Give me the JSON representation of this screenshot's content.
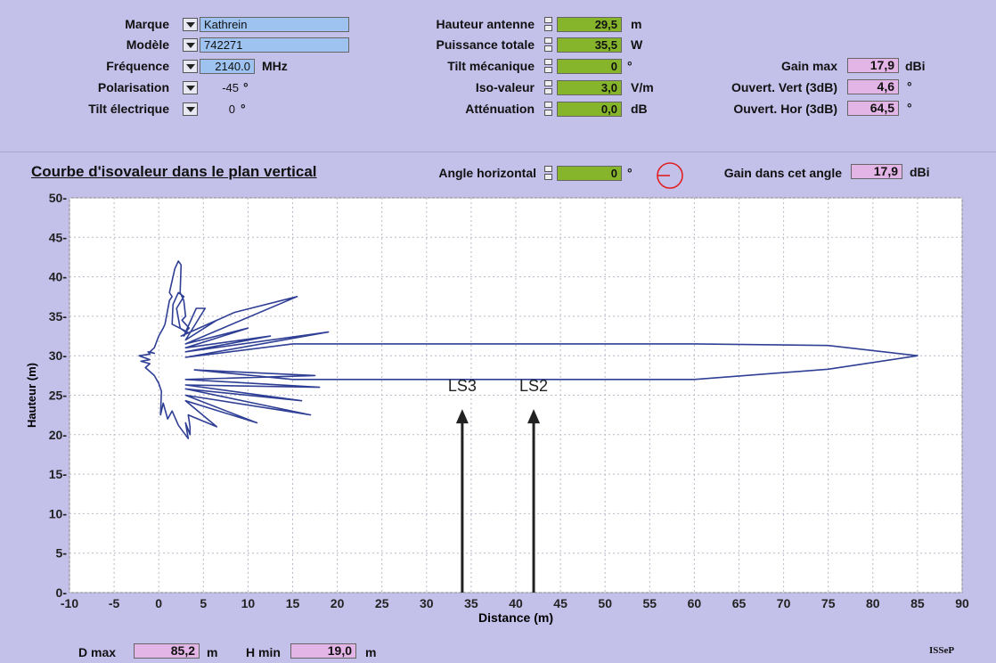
{
  "params_left": {
    "marque_label": "Marque",
    "marque_value": "Kathrein",
    "modele_label": "Modèle",
    "modele_value": "742271",
    "frequence_label": "Fréquence",
    "frequence_value": "2140.0",
    "frequence_unit": "MHz",
    "polarisation_label": "Polarisation",
    "polarisation_value": "-45",
    "polarisation_unit": "°",
    "tilt_elec_label": "Tilt électrique",
    "tilt_elec_value": "0",
    "tilt_elec_unit": "°"
  },
  "params_mid": {
    "hauteur_label": "Hauteur antenne",
    "hauteur_value": "29,5",
    "hauteur_unit": "m",
    "puissance_label": "Puissance totale",
    "puissance_value": "35,5",
    "puissance_unit": "W",
    "tilt_meca_label": "Tilt mécanique",
    "tilt_meca_value": "0",
    "tilt_meca_unit": "°",
    "iso_label": "Iso-valeur",
    "iso_value": "3,0",
    "iso_unit": "V/m",
    "att_label": "Atténuation",
    "att_value": "0,0",
    "att_unit": "dB"
  },
  "params_right": {
    "gain_label": "Gain max",
    "gain_value": "17,9",
    "gain_unit": "dBi",
    "vert_label": "Ouvert. Vert (3dB)",
    "vert_value": "4,6",
    "vert_unit": "°",
    "hor_label": "Ouvert. Hor (3dB)",
    "hor_value": "64,5",
    "hor_unit": "°"
  },
  "section": {
    "title": "Courbe d'isovaleur dans le plan vertical",
    "angle_label": "Angle horizontal",
    "angle_value": "0",
    "angle_unit": "°",
    "gain_angle_label": "Gain dans cet angle",
    "gain_angle_value": "17,9",
    "gain_angle_unit": "dBi"
  },
  "bottom": {
    "dmax_label": "D max",
    "dmax_value": "85,2",
    "dmax_unit": "m",
    "hmin_label": "H min",
    "hmin_value": "19,0",
    "hmin_unit": "m",
    "logo": "ISSeP"
  },
  "colors": {
    "background": "#c3c0ea",
    "curve": "#2f3f95",
    "input_blue": "#9ec3f0",
    "input_green": "#86b52c",
    "output_pink": "#e3b4e6",
    "compass": "#e02020"
  },
  "chart_data": {
    "type": "line",
    "title": "",
    "xlabel": "Distance (m)",
    "ylabel": "Hauteur (m)",
    "xlim": [
      -10,
      90
    ],
    "ylim": [
      0,
      50
    ],
    "xticks": [
      -10,
      -5,
      0,
      5,
      10,
      15,
      20,
      25,
      30,
      35,
      40,
      45,
      50,
      55,
      60,
      65,
      70,
      75,
      80,
      85,
      90
    ],
    "yticks": [
      0,
      5,
      10,
      15,
      20,
      25,
      30,
      35,
      40,
      45,
      50
    ],
    "grid": true,
    "series": [
      {
        "x": [
          -1,
          -0.5,
          0,
          0.5,
          0.7,
          1.2,
          1.5,
          1.2,
          1.8,
          2.2,
          2.5,
          2.4,
          2.8,
          3.0,
          2.6,
          3.4,
          3.0,
          2.4,
          2.0,
          2.8,
          2.2,
          1.6,
          1.5,
          3.2,
          2.8,
          4.2,
          5.2,
          3.0,
          6.5,
          2.5,
          8.5,
          15.5,
          3.0,
          10.0,
          3.0,
          12.5,
          3.0,
          19.0,
          3.0,
          15.0,
          60.0,
          75.0,
          85.0,
          75.0,
          60.0,
          15.0,
          4.0,
          17.5,
          3.0,
          18.0,
          3.0,
          16.0,
          3.0,
          17.0,
          3.0,
          11.0,
          3.0,
          6.5,
          3.3,
          3.5,
          3.5,
          3.0,
          3.3,
          2.2,
          1.5,
          1.0,
          0.5,
          0.2,
          0.3,
          0.0,
          -0.5,
          -1.0,
          -1.5,
          -1.0,
          -2.0,
          -1.0,
          -2.2,
          -1.0,
          -1.2,
          -0.5,
          -1.0
        ],
        "y": [
          30.5,
          31.0,
          32.5,
          33.5,
          34.0,
          37.0,
          37.5,
          38.0,
          41.0,
          42.0,
          41.5,
          38.0,
          37.0,
          35.0,
          34.5,
          33.5,
          33.0,
          33.5,
          36.0,
          37.5,
          38.0,
          36.5,
          34.0,
          33.0,
          32.5,
          36.0,
          36.0,
          32.0,
          34.5,
          32.5,
          35.5,
          37.5,
          31.5,
          33.5,
          31.0,
          32.5,
          30.5,
          33.0,
          29.8,
          31.5,
          31.5,
          31.3,
          30.0,
          28.3,
          27.0,
          27.0,
          28.2,
          27.5,
          27.0,
          26.0,
          26.3,
          24.3,
          25.8,
          22.5,
          25.0,
          21.5,
          24.3,
          21.0,
          22.5,
          21.0,
          20.0,
          21.5,
          19.5,
          21.2,
          23.0,
          22.0,
          24.0,
          22.5,
          25.5,
          26.5,
          27.5,
          28.0,
          28.5,
          29.0,
          29.3,
          29.5,
          30.0,
          30.2,
          30.5,
          30.3,
          30.5
        ]
      }
    ],
    "annotations": [
      {
        "text": "LS3",
        "x": 34,
        "y": 25.5,
        "arrow_from_y": 0
      },
      {
        "text": "LS2",
        "x": 42,
        "y": 25.5,
        "arrow_from_y": 0
      }
    ]
  }
}
